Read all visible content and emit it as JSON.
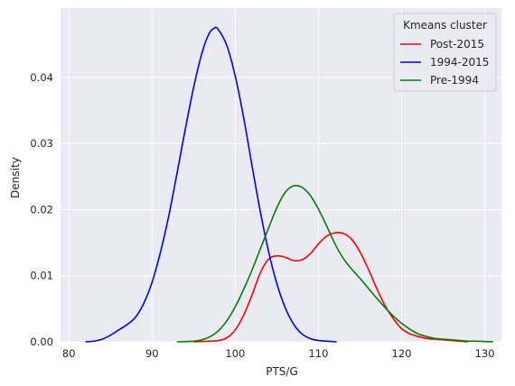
{
  "chart_data": {
    "type": "line",
    "subtype": "kde",
    "title": "",
    "xlabel": "PTS/G",
    "ylabel": "Density",
    "xlim": [
      79,
      132
    ],
    "ylim": [
      0,
      0.0505
    ],
    "xticks": [
      80,
      90,
      100,
      110,
      120,
      130
    ],
    "xtick_labels": [
      "80",
      "90",
      "100",
      "110",
      "120",
      "130"
    ],
    "yticks": [
      0.0,
      0.01,
      0.02,
      0.03,
      0.04
    ],
    "ytick_labels": [
      "0.00",
      "0.01",
      "0.02",
      "0.03",
      "0.04"
    ],
    "grid": true,
    "legend": {
      "title": "Kmeans cluster",
      "position": "top-right"
    },
    "background": "#eaeaf2",
    "series": [
      {
        "name": "Post-2015",
        "color": "#ff0000",
        "points": [
          [
            95,
            0.0
          ],
          [
            97,
            0.0001
          ],
          [
            98,
            0.0002
          ],
          [
            99,
            0.0006
          ],
          [
            100,
            0.0018
          ],
          [
            101,
            0.004
          ],
          [
            102,
            0.007
          ],
          [
            103,
            0.0104
          ],
          [
            104,
            0.0125
          ],
          [
            105,
            0.013
          ],
          [
            106,
            0.0128
          ],
          [
            107,
            0.0123
          ],
          [
            108,
            0.0124
          ],
          [
            109,
            0.0133
          ],
          [
            110,
            0.0148
          ],
          [
            111,
            0.016
          ],
          [
            112,
            0.0165
          ],
          [
            113,
            0.0164
          ],
          [
            114,
            0.0155
          ],
          [
            115,
            0.0136
          ],
          [
            116,
            0.011
          ],
          [
            117,
            0.0081
          ],
          [
            118,
            0.0055
          ],
          [
            119,
            0.0035
          ],
          [
            120,
            0.002
          ],
          [
            121,
            0.0012
          ],
          [
            122,
            0.0008
          ],
          [
            123,
            0.0005
          ],
          [
            124,
            0.0004
          ],
          [
            125,
            0.0003
          ],
          [
            126,
            0.0002
          ],
          [
            127,
            0.0001
          ],
          [
            128,
            0.0
          ]
        ]
      },
      {
        "name": "1994-2015",
        "color": "#0000ff",
        "points": [
          [
            82,
            0.0
          ],
          [
            83,
            0.0001
          ],
          [
            84,
            0.0004
          ],
          [
            85,
            0.001
          ],
          [
            86,
            0.0018
          ],
          [
            87,
            0.0026
          ],
          [
            88,
            0.0037
          ],
          [
            89,
            0.0058
          ],
          [
            90,
            0.009
          ],
          [
            91,
            0.0135
          ],
          [
            92,
            0.019
          ],
          [
            93,
            0.0255
          ],
          [
            94,
            0.0322
          ],
          [
            95,
            0.0385
          ],
          [
            96,
            0.0437
          ],
          [
            96.8,
            0.0465
          ],
          [
            97.5,
            0.0475
          ],
          [
            98,
            0.0472
          ],
          [
            99,
            0.0448
          ],
          [
            100,
            0.0402
          ],
          [
            101,
            0.034
          ],
          [
            102,
            0.0268
          ],
          [
            103,
            0.0198
          ],
          [
            104,
            0.0137
          ],
          [
            105,
            0.0088
          ],
          [
            106,
            0.0052
          ],
          [
            107,
            0.0027
          ],
          [
            108,
            0.0012
          ],
          [
            109,
            0.0005
          ],
          [
            110,
            0.0002
          ],
          [
            111,
            0.0001
          ],
          [
            112.2,
            0.0
          ]
        ]
      },
      {
        "name": "Pre-1994",
        "color": "#008000",
        "points": [
          [
            93,
            0.0
          ],
          [
            95,
            0.0001
          ],
          [
            96,
            0.0003
          ],
          [
            97,
            0.0008
          ],
          [
            98,
            0.0017
          ],
          [
            99,
            0.0032
          ],
          [
            100,
            0.0053
          ],
          [
            101,
            0.0079
          ],
          [
            102,
            0.0108
          ],
          [
            103,
            0.014
          ],
          [
            104,
            0.0172
          ],
          [
            105,
            0.0203
          ],
          [
            106,
            0.0226
          ],
          [
            107,
            0.0236
          ],
          [
            108,
            0.0234
          ],
          [
            109,
            0.0222
          ],
          [
            110,
            0.0201
          ],
          [
            111,
            0.0175
          ],
          [
            112,
            0.0148
          ],
          [
            113,
            0.0126
          ],
          [
            114,
            0.011
          ],
          [
            115,
            0.0096
          ],
          [
            116,
            0.0081
          ],
          [
            117,
            0.0066
          ],
          [
            118,
            0.0052
          ],
          [
            119,
            0.0039
          ],
          [
            120,
            0.0028
          ],
          [
            121,
            0.0019
          ],
          [
            122,
            0.0012
          ],
          [
            123,
            0.0008
          ],
          [
            124,
            0.0005
          ],
          [
            125,
            0.0004
          ],
          [
            126,
            0.0003
          ],
          [
            127,
            0.0002
          ],
          [
            128,
            0.0001
          ],
          [
            129,
            0.0001
          ],
          [
            131,
            0.0
          ]
        ]
      }
    ]
  }
}
